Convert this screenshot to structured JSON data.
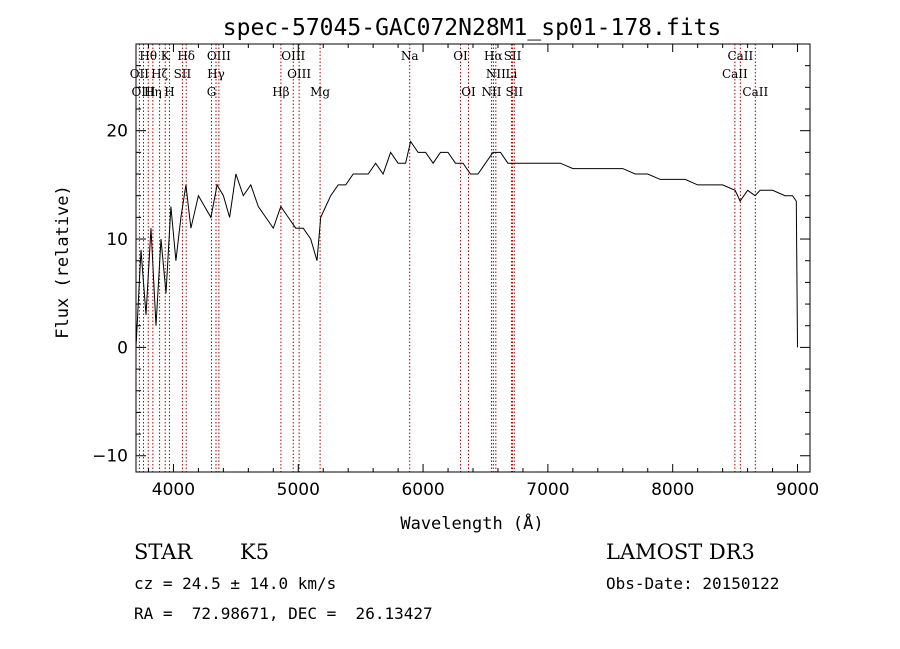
{
  "chart_data": {
    "type": "line",
    "title": "spec-57045-GAC072N28M1_sp01-178.fits",
    "xlabel": "Wavelength (Å)",
    "ylabel": "Flux (relative)",
    "xlim": [
      3700,
      9100
    ],
    "ylim": [
      -11.5,
      28
    ],
    "x_ticks": [
      4000,
      5000,
      6000,
      7000,
      8000,
      9000
    ],
    "x_tick_labels": [
      "4000",
      "5000",
      "6000",
      "7000",
      "8000",
      "9000"
    ],
    "y_ticks": [
      -10,
      0,
      10,
      20
    ],
    "y_tick_labels": [
      "−10",
      "0",
      "10",
      "20"
    ],
    "spectral_lines": [
      {
        "label": "Hθ",
        "wavelength": 3798,
        "row": 0
      },
      {
        "label": "K",
        "wavelength": 3934,
        "row": 0
      },
      {
        "label": "Hδ",
        "wavelength": 4102,
        "row": 0
      },
      {
        "label": "OIII",
        "wavelength": 4364,
        "row": 0
      },
      {
        "label": "OIII",
        "wavelength": 4960,
        "row": 0
      },
      {
        "label": "OI",
        "wavelength": 6300,
        "row": 0
      },
      {
        "label": "Hα",
        "wavelength": 6563,
        "row": 0
      },
      {
        "label": "SII",
        "wavelength": 6717,
        "row": 0
      },
      {
        "label": "CaII",
        "wavelength": 8542,
        "row": 0
      },
      {
        "label": "OII",
        "wavelength": 3727,
        "row": 1
      },
      {
        "label": "Hζ",
        "wavelength": 3889,
        "row": 1
      },
      {
        "label": "SII",
        "wavelength": 4072,
        "row": 1
      },
      {
        "label": "Hγ",
        "wavelength": 4341,
        "row": 1
      },
      {
        "label": "OIII",
        "wavelength": 5007,
        "row": 1
      },
      {
        "label": "NII",
        "wavelength": 6583,
        "row": 1
      },
      {
        "label": "Li",
        "wavelength": 6708,
        "row": 1
      },
      {
        "label": "CaII",
        "wavelength": 8498,
        "row": 1
      },
      {
        "label": "OIII",
        "wavelength": 3760,
        "row": 2
      },
      {
        "label": "Hη",
        "wavelength": 3835,
        "row": 2
      },
      {
        "label": "H",
        "wavelength": 3968,
        "row": 2
      },
      {
        "label": "G",
        "wavelength": 4305,
        "row": 2
      },
      {
        "label": "Hβ",
        "wavelength": 4861,
        "row": 2
      },
      {
        "label": "Mg",
        "wavelength": 5175,
        "row": 2
      },
      {
        "label": "Na",
        "wavelength": 5893,
        "row": 0
      },
      {
        "label": "OI",
        "wavelength": 6364,
        "row": 2
      },
      {
        "label": "NII",
        "wavelength": 6548,
        "row": 2
      },
      {
        "label": "SII",
        "wavelength": 6731,
        "row": 2
      },
      {
        "label": "CaII",
        "wavelength": 8662,
        "row": 2
      }
    ],
    "series": [
      {
        "name": "flux",
        "x": [
          3700,
          3740,
          3780,
          3820,
          3860,
          3900,
          3940,
          3980,
          4020,
          4060,
          4100,
          4140,
          4200,
          4250,
          4300,
          4350,
          4400,
          4450,
          4500,
          4560,
          4620,
          4680,
          4740,
          4800,
          4860,
          4920,
          4980,
          5040,
          5100,
          5150,
          5180,
          5220,
          5260,
          5320,
          5380,
          5440,
          5500,
          5560,
          5620,
          5680,
          5740,
          5800,
          5860,
          5900,
          5960,
          6020,
          6080,
          6140,
          6200,
          6260,
          6320,
          6380,
          6440,
          6500,
          6560,
          6620,
          6680,
          6740,
          6800,
          6900,
          7000,
          7100,
          7200,
          7300,
          7400,
          7500,
          7600,
          7700,
          7800,
          7900,
          8000,
          8100,
          8200,
          8300,
          8400,
          8500,
          8540,
          8600,
          8660,
          8700,
          8800,
          8900,
          8960,
          8990,
          9000
        ],
        "y": [
          0,
          9,
          3,
          11,
          2,
          10,
          5,
          13,
          8,
          12,
          15,
          11,
          14,
          13,
          12,
          15,
          14,
          12,
          16,
          14,
          15,
          13,
          12,
          11,
          13,
          12,
          11,
          11,
          10,
          8,
          12,
          13,
          14,
          15,
          15,
          16,
          16,
          16,
          17,
          16,
          18,
          17,
          17,
          19,
          18,
          18,
          17,
          18,
          18,
          17,
          17,
          16,
          16,
          17,
          18,
          18,
          17,
          17,
          17,
          17,
          17,
          17,
          16.5,
          16.5,
          16.5,
          16.5,
          16.5,
          16,
          16,
          15.5,
          15.5,
          15.5,
          15,
          15,
          15,
          14.5,
          13.5,
          14.5,
          14,
          14.5,
          14.5,
          14,
          14,
          13.5,
          0
        ]
      }
    ]
  },
  "info": {
    "star_type": "STAR",
    "subclass": "K5",
    "survey": "LAMOST DR3",
    "redshift": "cz = 24.5 ± 14.0 km/s",
    "obs_date": "Obs-Date: 20150122",
    "coords": "RA =  72.98671, DEC =  26.13427"
  }
}
